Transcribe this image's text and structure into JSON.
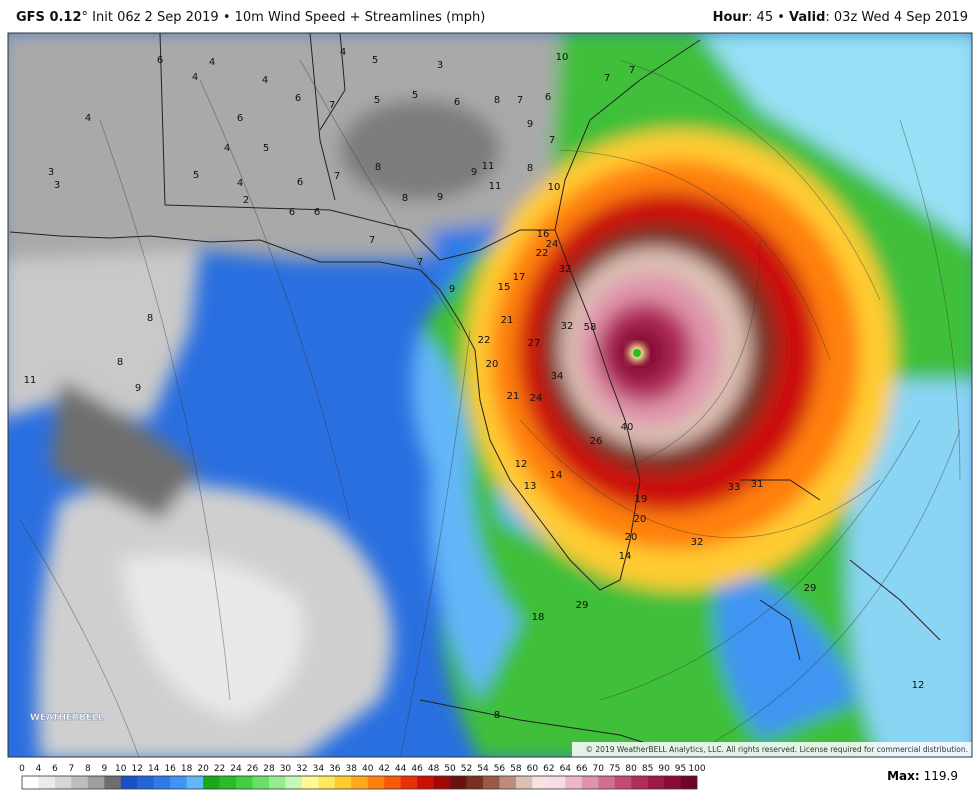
{
  "header": {
    "model": "GFS 0.12",
    "title_rest": "° Init 06z 2 Sep 2019 • 10m Wind Speed + Streamlines (mph)",
    "hour_label": "Hour",
    "hour_text": ": 45 • ",
    "valid_label": "Valid",
    "valid_text": ": 03z Wed 4 Sep 2019"
  },
  "map_labels": [
    "6",
    "4",
    "4",
    "4",
    "4",
    "5",
    "3",
    "10",
    "7",
    "7",
    "4",
    "6",
    "6",
    "7",
    "5",
    "5",
    "6",
    "8",
    "7",
    "6",
    "3",
    "3",
    "5",
    "4",
    "5",
    "4",
    "2",
    "6",
    "6",
    "6",
    "7",
    "8",
    "8",
    "9",
    "9",
    "11",
    "11",
    "8",
    "7",
    "9",
    "10",
    "16",
    "24",
    "22",
    "32",
    "17",
    "15",
    "9",
    "7",
    "7",
    "8",
    "8",
    "9",
    "11",
    "21",
    "22",
    "27",
    "32",
    "58",
    "20",
    "34",
    "21",
    "24",
    "26",
    "40",
    "12",
    "14",
    "13",
    "19",
    "20",
    "20",
    "14",
    "32",
    "33",
    "31",
    "29",
    "12",
    "18",
    "29",
    "8"
  ],
  "copyright": "© 2019 WeatherBELL Analytics, LLC. All rights reserved. License required for commercial distribution.",
  "logo": "WEATHERBELL",
  "colorbar": {
    "labels": [
      0,
      4,
      6,
      7,
      8,
      9,
      10,
      12,
      14,
      16,
      18,
      20,
      22,
      24,
      26,
      28,
      30,
      32,
      34,
      36,
      38,
      40,
      42,
      44,
      46,
      48,
      50,
      52,
      54,
      56,
      58,
      60,
      62,
      64,
      66,
      70,
      75,
      80,
      85,
      90,
      95,
      100
    ],
    "colors": [
      "#ffffff",
      "#ebebeb",
      "#d6d6d6",
      "#bdbdbd",
      "#9e9e9e",
      "#6e6e6e",
      "#1d4fc4",
      "#2563d8",
      "#2f7ae8",
      "#3f95f2",
      "#63b6f8",
      "#18a818",
      "#28bc28",
      "#40d040",
      "#68e068",
      "#98ec90",
      "#c8f6b8",
      "#fff89a",
      "#ffe860",
      "#ffcc30",
      "#ffa820",
      "#ff8010",
      "#f85808",
      "#e83008",
      "#cc1008",
      "#a00808",
      "#6a1010",
      "#7a3020",
      "#9a5a48",
      "#bc8c7c",
      "#dcc0b4",
      "#f4e4e0",
      "#f8dce4",
      "#ecb8c8",
      "#e094ac",
      "#d07090",
      "#c04c74",
      "#b02c5c",
      "#a01848",
      "#880c34",
      "#700424"
    ]
  },
  "max_label": "Max:",
  "max_value": 119.9
}
